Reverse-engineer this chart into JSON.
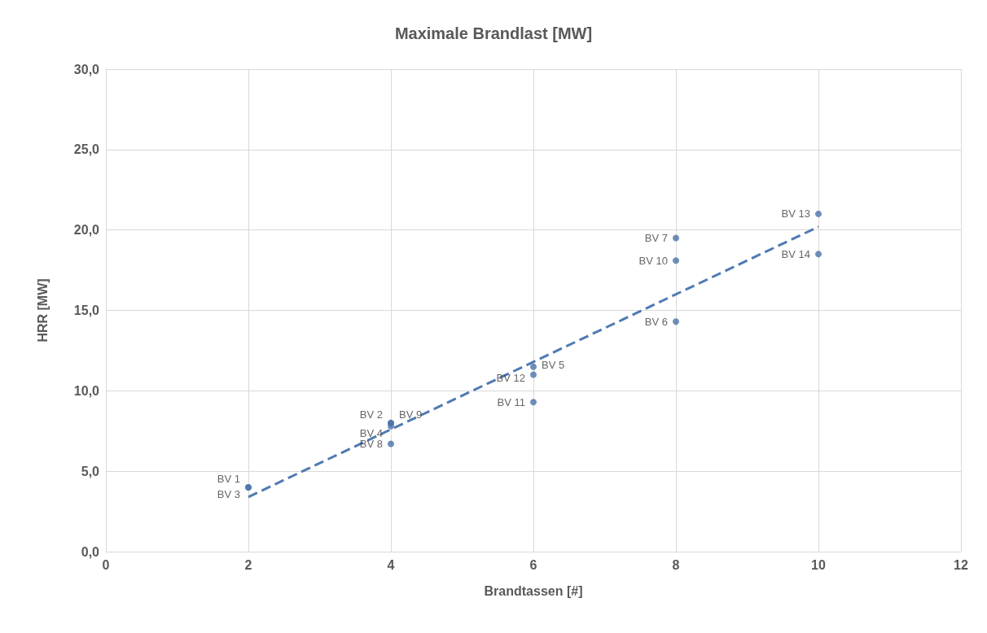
{
  "chart_data": {
    "type": "scatter",
    "title": "Maximale Brandlast [MW]",
    "xlabel": "Brandtassen [#]",
    "ylabel": "HRR [MW]",
    "xlim": [
      0,
      12
    ],
    "xticks": [
      0,
      2,
      4,
      6,
      8,
      10,
      12
    ],
    "ylim": [
      0,
      30
    ],
    "yticks": [
      {
        "value": 0,
        "label": "0,0"
      },
      {
        "value": 5,
        "label": "5,0"
      },
      {
        "value": 10,
        "label": "10,0"
      },
      {
        "value": 15,
        "label": "15,0"
      },
      {
        "value": 20,
        "label": "20,0"
      },
      {
        "value": 25,
        "label": "25,0"
      },
      {
        "value": 30,
        "label": "30,0"
      }
    ],
    "grid": true,
    "marker": "circle",
    "series": [
      {
        "color": "#4a72a8",
        "x": [
          2,
          4,
          2,
          4,
          6,
          8,
          8,
          4,
          4,
          8,
          6,
          6,
          10,
          10
        ],
        "values": [
          4.0,
          8.0,
          4.0,
          7.8,
          11.5,
          14.3,
          19.5,
          6.7,
          8.0,
          18.1,
          9.3,
          11.0,
          21.0,
          18.5
        ],
        "value_labels": [
          "BV 1",
          "BV 2",
          "BV 3",
          "BV 4",
          "BV 5",
          "BV 6",
          "BV 7",
          "BV 8",
          "BV 9",
          "BV 10",
          "BV 11",
          "BV 12",
          "BV 13",
          "BV 14"
        ]
      },
      {
        "type": "line",
        "color": "#4f7ab3",
        "line_style": "dashed",
        "marker": "none",
        "x": [
          2,
          10
        ],
        "values": [
          3.4,
          20.2
        ]
      }
    ]
  }
}
